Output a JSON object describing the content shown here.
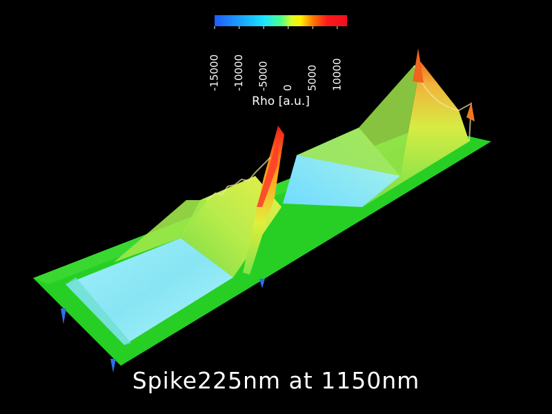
{
  "colorbar": {
    "label": "Rho [a.u.]",
    "ticks": [
      {
        "label": "-15000",
        "value": -15000
      },
      {
        "label": "-10000",
        "value": -10000
      },
      {
        "label": "-5000",
        "value": -5000
      },
      {
        "label": "0",
        "value": 0
      },
      {
        "label": "5000",
        "value": 5000
      },
      {
        "label": "10000",
        "value": 10000
      }
    ],
    "range": [
      -15000,
      12000
    ],
    "colors": [
      "#1f5cff",
      "#19b6ff",
      "#1ee6ff",
      "#4cff8a",
      "#d6ff2a",
      "#fff000",
      "#ff7a00",
      "#ff1a1a",
      "#ee1020"
    ]
  },
  "caption": "Spike225nm at 1150nm",
  "colors": {
    "background": "#000000",
    "plate": "#27cf24",
    "trough": "#86e8ee",
    "peak": "#ee1e1e"
  }
}
